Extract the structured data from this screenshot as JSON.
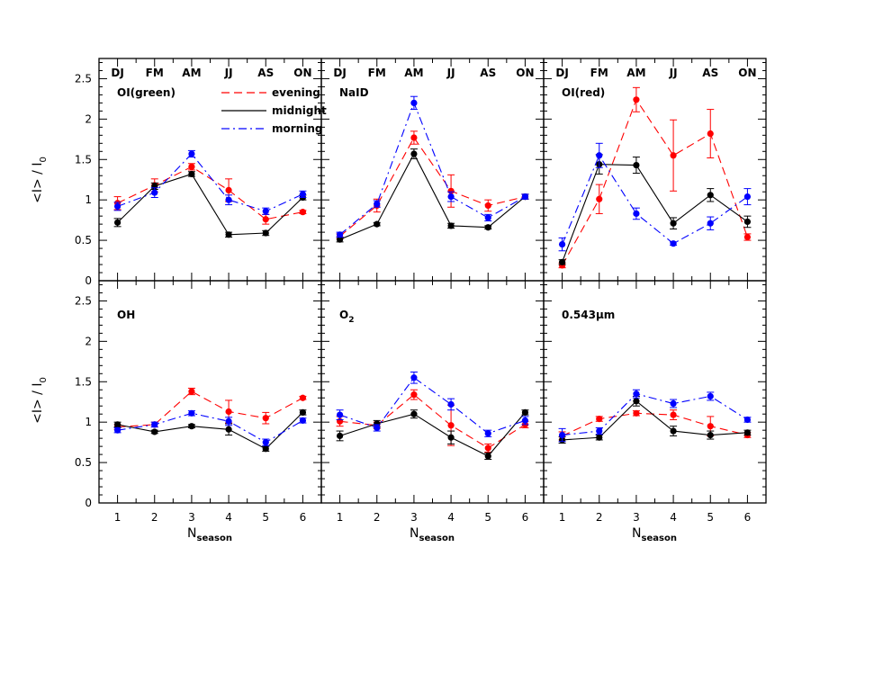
{
  "chart_data": {
    "type": "line",
    "layout": "2x3 grid of panels sharing axes",
    "xlabel": "N",
    "xlabel_sub": "season",
    "ylabel": "<I>  /  I",
    "ylabel_sub": "0",
    "xlim": [
      0.5,
      6.5
    ],
    "ylim": [
      0,
      2.75
    ],
    "x_ticks": [
      1,
      2,
      3,
      4,
      5,
      6
    ],
    "y_ticks": [
      0,
      0.5,
      1,
      1.5,
      2,
      2.5
    ],
    "y_tick_labels": [
      "0",
      "0.5",
      "1",
      "1.5",
      "2",
      "2.5"
    ],
    "season_labels": [
      "DJ",
      "FM",
      "AM",
      "JJ",
      "AS",
      "ON"
    ],
    "grid": false,
    "legend": {
      "placement": "top-left panel, upper-right",
      "entries": [
        {
          "label": "evening",
          "color": "#ff0000",
          "style": "dashed"
        },
        {
          "label": "midnight",
          "color": "#000000",
          "style": "solid"
        },
        {
          "label": "morning",
          "color": "#0000ff",
          "style": "dash-dot"
        }
      ]
    },
    "panels": [
      {
        "title": "OI(green)",
        "title_sub": "",
        "series": [
          {
            "name": "evening",
            "color": "#ff0000",
            "y": [
              0.96,
              1.18,
              1.41,
              1.12,
              0.76,
              0.85
            ],
            "err": [
              0.08,
              0.08,
              0.04,
              0.14,
              0.06,
              0.02
            ]
          },
          {
            "name": "midnight",
            "color": "#000000",
            "y": [
              0.72,
              1.17,
              1.32,
              0.57,
              0.59,
              1.03
            ],
            "err": [
              0.05,
              0.04,
              0.03,
              0.03,
              0.03,
              0.03
            ]
          },
          {
            "name": "morning",
            "color": "#0000ff",
            "y": [
              0.92,
              1.09,
              1.57,
              1.0,
              0.86,
              1.07
            ],
            "err": [
              0.05,
              0.06,
              0.04,
              0.06,
              0.04,
              0.04
            ]
          }
        ]
      },
      {
        "title": "NaID",
        "title_sub": "",
        "series": [
          {
            "name": "evening",
            "color": "#ff0000",
            "y": [
              0.55,
              0.93,
              1.77,
              1.11,
              0.93,
              1.04
            ],
            "err": [
              0.03,
              0.08,
              0.08,
              0.2,
              0.07,
              0.03
            ]
          },
          {
            "name": "midnight",
            "color": "#000000",
            "y": [
              0.51,
              0.7,
              1.57,
              0.68,
              0.66,
              1.04
            ],
            "err": [
              0.03,
              0.02,
              0.06,
              0.03,
              0.02,
              0.03
            ]
          },
          {
            "name": "morning",
            "color": "#0000ff",
            "y": [
              0.57,
              0.95,
              2.2,
              1.04,
              0.78,
              1.04
            ],
            "err": [
              0.03,
              0.04,
              0.08,
              0.06,
              0.04,
              0.03
            ]
          }
        ]
      },
      {
        "title": "OI(red)",
        "title_sub": "",
        "series": [
          {
            "name": "evening",
            "color": "#ff0000",
            "y": [
              0.19,
              1.01,
              2.24,
              1.55,
              1.82,
              0.54
            ],
            "err": [
              0.03,
              0.18,
              0.15,
              0.44,
              0.3,
              0.04
            ]
          },
          {
            "name": "midnight",
            "color": "#000000",
            "y": [
              0.23,
              1.44,
              1.43,
              0.71,
              1.06,
              0.73
            ],
            "err": [
              0.03,
              0.12,
              0.1,
              0.07,
              0.08,
              0.07
            ]
          },
          {
            "name": "morning",
            "color": "#0000ff",
            "y": [
              0.45,
              1.55,
              0.83,
              0.46,
              0.71,
              1.04
            ],
            "err": [
              0.08,
              0.15,
              0.07,
              0.02,
              0.08,
              0.1
            ]
          }
        ]
      },
      {
        "title": "OH",
        "title_sub": "",
        "series": [
          {
            "name": "evening",
            "color": "#ff0000",
            "y": [
              0.94,
              0.97,
              1.38,
              1.13,
              1.05,
              1.3
            ],
            "err": [
              0.03,
              0.03,
              0.04,
              0.14,
              0.07,
              0.02
            ]
          },
          {
            "name": "midnight",
            "color": "#000000",
            "y": [
              0.97,
              0.88,
              0.95,
              0.91,
              0.67,
              1.12
            ],
            "err": [
              0.03,
              0.02,
              0.02,
              0.07,
              0.03,
              0.03
            ]
          },
          {
            "name": "morning",
            "color": "#0000ff",
            "y": [
              0.9,
              0.97,
              1.11,
              1.01,
              0.75,
              1.02
            ],
            "err": [
              0.03,
              0.03,
              0.03,
              0.05,
              0.04,
              0.03
            ]
          }
        ]
      },
      {
        "title": "O",
        "title_sub": "2",
        "series": [
          {
            "name": "evening",
            "color": "#ff0000",
            "y": [
              1.01,
              0.96,
              1.34,
              0.96,
              0.68,
              0.97
            ],
            "err": [
              0.06,
              0.04,
              0.06,
              0.25,
              0.05,
              0.04
            ]
          },
          {
            "name": "midnight",
            "color": "#000000",
            "y": [
              0.83,
              0.98,
              1.1,
              0.81,
              0.58,
              1.12
            ],
            "err": [
              0.06,
              0.04,
              0.05,
              0.08,
              0.04,
              0.03
            ]
          },
          {
            "name": "morning",
            "color": "#0000ff",
            "y": [
              1.09,
              0.93,
              1.55,
              1.22,
              0.86,
              1.02
            ],
            "err": [
              0.06,
              0.04,
              0.07,
              0.07,
              0.04,
              0.05
            ]
          }
        ]
      },
      {
        "title": "0.543μm",
        "title_sub": "",
        "series": [
          {
            "name": "evening",
            "color": "#ff0000",
            "y": [
              0.83,
              1.04,
              1.11,
              1.09,
              0.95,
              0.84
            ],
            "err": [
              0.05,
              0.03,
              0.03,
              0.06,
              0.12,
              0.03
            ]
          },
          {
            "name": "midnight",
            "color": "#000000",
            "y": [
              0.78,
              0.81,
              1.26,
              0.89,
              0.84,
              0.87
            ],
            "err": [
              0.04,
              0.03,
              0.06,
              0.06,
              0.05,
              0.03
            ]
          },
          {
            "name": "morning",
            "color": "#0000ff",
            "y": [
              0.84,
              0.89,
              1.35,
              1.23,
              1.32,
              1.03
            ],
            "err": [
              0.08,
              0.04,
              0.05,
              0.05,
              0.05,
              0.03
            ]
          }
        ]
      }
    ]
  }
}
